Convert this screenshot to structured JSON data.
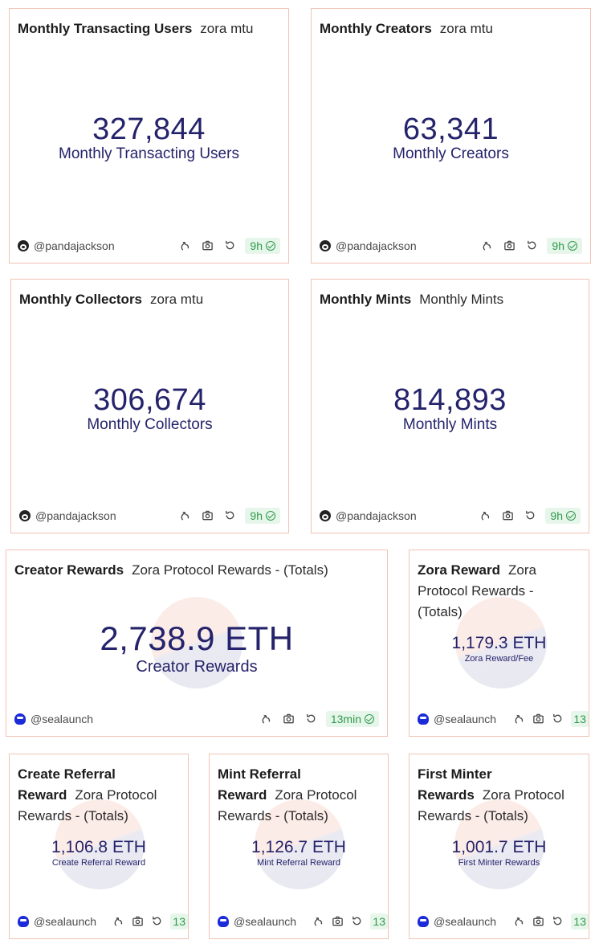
{
  "cards": [
    {
      "title": "Monthly Transacting Users",
      "subtitle": "zora mtu",
      "value": "327,844",
      "label": "Monthly Transacting Users",
      "handle": "@pandajackson",
      "badge": "9h"
    },
    {
      "title": "Monthly Creators",
      "subtitle": "zora mtu",
      "value": "63,341",
      "label": "Monthly Creators",
      "handle": "@pandajackson",
      "badge": "9h"
    },
    {
      "title": "Monthly Collectors",
      "subtitle": "zora mtu",
      "value": "306,674",
      "label": "Monthly Collectors",
      "handle": "@pandajackson",
      "badge": "9h"
    },
    {
      "title": "Monthly Mints",
      "subtitle": "Monthly Mints",
      "value": "814,893",
      "label": "Monthly Mints",
      "handle": "@pandajackson",
      "badge": "9h"
    },
    {
      "title": "Creator Rewards",
      "subtitle": "Zora Protocol Rewards - (Totals)",
      "value": "2,738.9 ETH",
      "label": "Creator Rewards",
      "handle": "@sealaunch",
      "badge": "13min"
    },
    {
      "title_line1": "Zora Reward",
      "title_line1_sub": "Zora",
      "title_line2": "Protocol Rewards -",
      "title_line3": "(Totals)",
      "value": "1,179.3 ETH",
      "label": "Zora Reward/Fee",
      "handle": "@sealaunch",
      "badge": "13"
    },
    {
      "title_line1": "Create Referral",
      "title_line2_bold": "Reward",
      "title_line2_sub": "Zora Protocol",
      "title_line3": "Rewards - (Totals)",
      "value": "1,106.8 ETH",
      "label": "Create Referral Reward",
      "handle": "@sealaunch",
      "badge": "13"
    },
    {
      "title_line1": "Mint Referral",
      "title_line2_bold": "Reward",
      "title_line2_sub": "Zora Protocol",
      "title_line3": "Rewards - (Totals)",
      "value": "1,126.7 ETH",
      "label": "Mint Referral Reward",
      "handle": "@sealaunch",
      "badge": "13"
    },
    {
      "title_line1": "First Minter",
      "title_line2_bold": "Rewards",
      "title_line2_sub": "Zora Protocol",
      "title_line3": "Rewards - (Totals)",
      "value": "1,001.7 ETH",
      "label": "First Minter Rewards",
      "handle": "@sealaunch",
      "badge": "13"
    }
  ],
  "icons": {
    "share": "share-icon",
    "camera": "camera-icon",
    "refresh": "refresh-icon",
    "check": "check-circle-icon"
  },
  "colors": {
    "border": "#f1c3b4",
    "value": "#24236b",
    "badge_bg": "#e7f6ea",
    "badge_fg": "#2e9a4a"
  }
}
